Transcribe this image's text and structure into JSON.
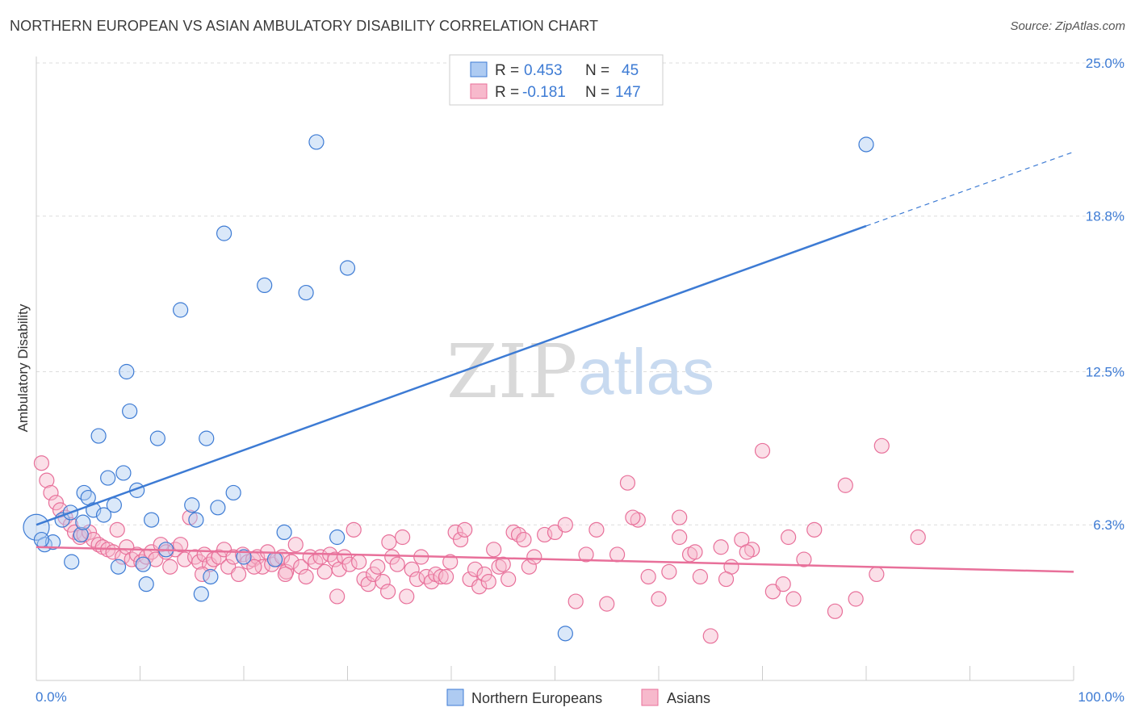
{
  "title": "NORTHERN EUROPEAN VS ASIAN AMBULATORY DISABILITY CORRELATION CHART",
  "source": "Source: ZipAtlas.com",
  "watermark": {
    "zip": "ZIP",
    "atlas": "atlas"
  },
  "colors": {
    "blue": "#3d7bd4",
    "blue_fill": "#aecbf2",
    "pink": "#e8709a",
    "pink_fill": "#f7b9cc",
    "grid": "#dddddd"
  },
  "legend_box": {
    "rows": [
      {
        "r_label": "R =",
        "r_value": "0.453",
        "n_label": "N =",
        "n_value": "45"
      },
      {
        "r_label": "R =",
        "r_value": "-0.181",
        "n_label": "N =",
        "n_value": "147"
      }
    ]
  },
  "chart_data": {
    "type": "scatter",
    "title": "NORTHERN EUROPEAN VS ASIAN AMBULATORY DISABILITY CORRELATION CHART",
    "xlabel": "",
    "ylabel": "Ambulatory Disability",
    "xlim": [
      0,
      100
    ],
    "ylim": [
      0,
      25
    ],
    "x_tick_labels": [
      "0.0%",
      "100.0%"
    ],
    "y_ticks": [
      6.3,
      12.5,
      18.8,
      25.0
    ],
    "y_tick_labels": [
      "6.3%",
      "12.5%",
      "18.8%",
      "25.0%"
    ],
    "grid": true,
    "legend_position": "top-center",
    "series": [
      {
        "name": "Northern Europeans",
        "color": "#3d7bd4",
        "trend": {
          "x0": 0,
          "y0": 6.3,
          "x1": 80,
          "y1": 18.4,
          "dashed_to_x": 100,
          "dashed_to_y": 21.4
        },
        "points": [
          [
            0,
            6.2
          ],
          [
            0.8,
            5.5
          ],
          [
            1.6,
            5.6
          ],
          [
            2.5,
            6.5
          ],
          [
            3.3,
            6.8
          ],
          [
            3.4,
            4.8
          ],
          [
            4.3,
            5.9
          ],
          [
            4.5,
            6.4
          ],
          [
            4.6,
            7.6
          ],
          [
            5.0,
            7.4
          ],
          [
            5.5,
            6.9
          ],
          [
            6.0,
            9.9
          ],
          [
            6.5,
            6.7
          ],
          [
            6.9,
            8.2
          ],
          [
            7.5,
            7.1
          ],
          [
            7.9,
            4.6
          ],
          [
            8.4,
            8.4
          ],
          [
            8.7,
            12.5
          ],
          [
            9.0,
            10.9
          ],
          [
            9.7,
            7.7
          ],
          [
            10.3,
            4.7
          ],
          [
            10.6,
            3.9
          ],
          [
            11.1,
            6.5
          ],
          [
            11.7,
            9.8
          ],
          [
            12.5,
            5.3
          ],
          [
            13.9,
            15.0
          ],
          [
            15.0,
            7.1
          ],
          [
            15.4,
            6.5
          ],
          [
            15.9,
            3.5
          ],
          [
            16.4,
            9.8
          ],
          [
            16.8,
            4.2
          ],
          [
            17.5,
            7.0
          ],
          [
            18.1,
            18.1
          ],
          [
            19.0,
            7.6
          ],
          [
            20.0,
            5.0
          ],
          [
            22.0,
            16.0
          ],
          [
            23.0,
            4.9
          ],
          [
            23.9,
            6.0
          ],
          [
            26.0,
            15.7
          ],
          [
            27.0,
            21.8
          ],
          [
            29.0,
            5.8
          ],
          [
            30.0,
            16.7
          ],
          [
            51.0,
            1.9
          ],
          [
            80.0,
            21.7
          ],
          [
            0.5,
            5.7
          ]
        ]
      },
      {
        "name": "Asians",
        "color": "#e8709a",
        "trend": {
          "x0": 0,
          "y0": 5.4,
          "x1": 100,
          "y1": 4.4
        },
        "points": [
          [
            0.5,
            8.8
          ],
          [
            1.0,
            8.1
          ],
          [
            1.4,
            7.6
          ],
          [
            1.9,
            7.2
          ],
          [
            2.3,
            6.9
          ],
          [
            2.8,
            6.6
          ],
          [
            3.3,
            6.3
          ],
          [
            3.7,
            6.0
          ],
          [
            4.2,
            5.8
          ],
          [
            4.6,
            5.9
          ],
          [
            5.1,
            6.0
          ],
          [
            5.5,
            5.7
          ],
          [
            6.0,
            5.5
          ],
          [
            6.4,
            5.4
          ],
          [
            6.9,
            5.3
          ],
          [
            7.4,
            5.2
          ],
          [
            7.8,
            6.1
          ],
          [
            8.3,
            5.0
          ],
          [
            8.7,
            5.4
          ],
          [
            9.2,
            4.9
          ],
          [
            9.7,
            5.1
          ],
          [
            10.1,
            4.8
          ],
          [
            10.6,
            5.0
          ],
          [
            11.1,
            5.2
          ],
          [
            11.5,
            4.9
          ],
          [
            12.0,
            5.5
          ],
          [
            12.5,
            5.2
          ],
          [
            12.9,
            4.6
          ],
          [
            13.4,
            5.3
          ],
          [
            13.9,
            5.5
          ],
          [
            14.3,
            4.9
          ],
          [
            14.8,
            6.6
          ],
          [
            15.3,
            5.0
          ],
          [
            15.7,
            4.8
          ],
          [
            16.2,
            5.1
          ],
          [
            16.7,
            4.7
          ],
          [
            17.1,
            4.9
          ],
          [
            17.6,
            5.0
          ],
          [
            18.1,
            5.3
          ],
          [
            18.5,
            4.6
          ],
          [
            19.0,
            5.0
          ],
          [
            19.5,
            4.3
          ],
          [
            19.9,
            5.1
          ],
          [
            20.4,
            4.8
          ],
          [
            20.9,
            4.9
          ],
          [
            21.3,
            5.0
          ],
          [
            21.8,
            4.6
          ],
          [
            22.3,
            5.2
          ],
          [
            22.7,
            4.7
          ],
          [
            23.2,
            4.9
          ],
          [
            23.7,
            5.0
          ],
          [
            24.1,
            4.4
          ],
          [
            24.6,
            4.8
          ],
          [
            25.0,
            5.5
          ],
          [
            25.5,
            4.6
          ],
          [
            26.0,
            4.2
          ],
          [
            26.4,
            5.0
          ],
          [
            26.9,
            4.8
          ],
          [
            27.4,
            5.0
          ],
          [
            27.8,
            4.4
          ],
          [
            28.3,
            5.1
          ],
          [
            28.8,
            4.9
          ],
          [
            29.2,
            4.5
          ],
          [
            29.7,
            5.0
          ],
          [
            30.2,
            4.7
          ],
          [
            30.6,
            6.1
          ],
          [
            31.1,
            4.8
          ],
          [
            31.6,
            4.1
          ],
          [
            32.0,
            3.9
          ],
          [
            32.5,
            4.3
          ],
          [
            32.9,
            4.6
          ],
          [
            33.4,
            4.0
          ],
          [
            33.9,
            3.6
          ],
          [
            34.3,
            5.0
          ],
          [
            34.8,
            4.7
          ],
          [
            35.3,
            5.8
          ],
          [
            35.7,
            3.4
          ],
          [
            36.2,
            4.5
          ],
          [
            36.7,
            4.1
          ],
          [
            37.1,
            5.0
          ],
          [
            37.6,
            4.2
          ],
          [
            38.1,
            4.0
          ],
          [
            38.5,
            4.3
          ],
          [
            39.0,
            4.2
          ],
          [
            39.5,
            4.2
          ],
          [
            39.9,
            4.8
          ],
          [
            40.4,
            6.0
          ],
          [
            40.9,
            5.7
          ],
          [
            41.3,
            6.1
          ],
          [
            41.8,
            4.1
          ],
          [
            42.3,
            4.5
          ],
          [
            42.7,
            3.8
          ],
          [
            43.2,
            4.3
          ],
          [
            43.6,
            4.0
          ],
          [
            44.1,
            5.3
          ],
          [
            44.6,
            4.6
          ],
          [
            45.0,
            4.7
          ],
          [
            45.5,
            4.1
          ],
          [
            46.0,
            6.0
          ],
          [
            46.5,
            5.9
          ],
          [
            47.0,
            5.7
          ],
          [
            47.5,
            4.6
          ],
          [
            48.0,
            5.0
          ],
          [
            49.0,
            5.9
          ],
          [
            50.0,
            6.0
          ],
          [
            51.0,
            6.3
          ],
          [
            52.0,
            3.2
          ],
          [
            53.0,
            5.1
          ],
          [
            54.0,
            6.1
          ],
          [
            55.0,
            3.1
          ],
          [
            56.0,
            5.1
          ],
          [
            57.0,
            8.0
          ],
          [
            58.0,
            6.5
          ],
          [
            59.0,
            4.2
          ],
          [
            60.0,
            3.3
          ],
          [
            61.0,
            4.4
          ],
          [
            62.0,
            5.8
          ],
          [
            63.0,
            5.1
          ],
          [
            64.0,
            4.2
          ],
          [
            65.0,
            1.8
          ],
          [
            66.0,
            5.4
          ],
          [
            67.0,
            4.6
          ],
          [
            68.0,
            5.7
          ],
          [
            69.0,
            5.3
          ],
          [
            70.0,
            9.3
          ],
          [
            71.0,
            3.6
          ],
          [
            72.0,
            3.9
          ],
          [
            73.0,
            3.3
          ],
          [
            74.0,
            4.9
          ],
          [
            75.0,
            6.1
          ],
          [
            77.0,
            2.8
          ],
          [
            78.0,
            7.9
          ],
          [
            79.0,
            3.3
          ],
          [
            81.0,
            4.3
          ],
          [
            81.5,
            9.5
          ],
          [
            85.0,
            5.8
          ],
          [
            57.5,
            6.6
          ],
          [
            62.0,
            6.6
          ],
          [
            63.5,
            5.2
          ],
          [
            68.5,
            5.2
          ],
          [
            72.5,
            5.8
          ],
          [
            66.5,
            4.1
          ],
          [
            34.0,
            5.6
          ],
          [
            29.0,
            3.4
          ],
          [
            24.0,
            4.3
          ],
          [
            21.0,
            4.6
          ],
          [
            16.0,
            4.3
          ]
        ]
      }
    ]
  },
  "bottom_legend": [
    {
      "label": "Northern Europeans"
    },
    {
      "label": "Asians"
    }
  ]
}
